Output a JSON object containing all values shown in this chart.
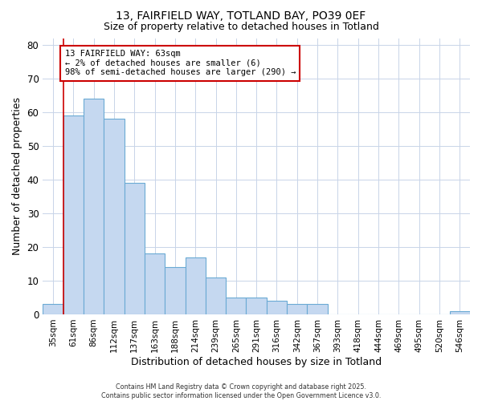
{
  "title1": "13, FAIRFIELD WAY, TOTLAND BAY, PO39 0EF",
  "title2": "Size of property relative to detached houses in Totland",
  "xlabel": "Distribution of detached houses by size in Totland",
  "ylabel": "Number of detached properties",
  "categories": [
    "35sqm",
    "61sqm",
    "86sqm",
    "112sqm",
    "137sqm",
    "163sqm",
    "188sqm",
    "214sqm",
    "239sqm",
    "265sqm",
    "291sqm",
    "316sqm",
    "342sqm",
    "367sqm",
    "393sqm",
    "418sqm",
    "444sqm",
    "469sqm",
    "495sqm",
    "520sqm",
    "546sqm"
  ],
  "values": [
    3,
    59,
    64,
    58,
    39,
    18,
    14,
    17,
    11,
    5,
    5,
    4,
    3,
    3,
    0,
    0,
    0,
    0,
    0,
    0,
    1
  ],
  "bar_color": "#c5d8f0",
  "bar_edge_color": "#6aaad4",
  "vline_x_index": 1,
  "vline_color": "#cc0000",
  "annotation_text": "13 FAIRFIELD WAY: 63sqm\n← 2% of detached houses are smaller (6)\n98% of semi-detached houses are larger (290) →",
  "annotation_box_color": "#ffffff",
  "annotation_box_edge": "#cc0000",
  "ylim": [
    0,
    82
  ],
  "yticks": [
    0,
    10,
    20,
    30,
    40,
    50,
    60,
    70,
    80
  ],
  "grid_color": "#c8d4e8",
  "bg_color": "#ffffff",
  "plot_bg_color": "#ffffff",
  "footer_line1": "Contains HM Land Registry data © Crown copyright and database right 2025.",
  "footer_line2": "Contains public sector information licensed under the Open Government Licence v3.0."
}
